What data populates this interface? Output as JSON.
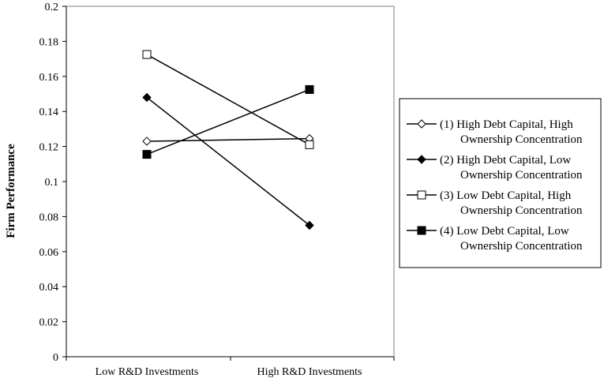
{
  "chart_data": {
    "type": "line",
    "title": "",
    "xlabel": "",
    "ylabel": "Firm Performance",
    "ylim": [
      0,
      0.2
    ],
    "yticks": [
      "0",
      "0.02",
      "0.04",
      "0.06",
      "0.08",
      "0.1",
      "0.12",
      "0.14",
      "0.16",
      "0.18",
      "0.2"
    ],
    "categories": [
      "Low R&D Investments",
      "High R&D Investments"
    ],
    "grid": false,
    "legend_position": "right",
    "series": [
      {
        "name_line1": "(1) High Debt Capital, High",
        "name_line2": "Ownership Concentration",
        "marker": "diamond-open",
        "color": "#000000",
        "values": [
          0.123,
          0.1245
        ]
      },
      {
        "name_line1": "(2) High Debt Capital, Low",
        "name_line2": "Ownership Concentration",
        "marker": "diamond-filled",
        "color": "#000000",
        "values": [
          0.148,
          0.075
        ]
      },
      {
        "name_line1": "(3) Low Debt Capital, High",
        "name_line2": "Ownership Concentration",
        "marker": "square-open",
        "color": "#000000",
        "values": [
          0.1725,
          0.121
        ]
      },
      {
        "name_line1": "(4) Low Debt Capital, Low",
        "name_line2": "Ownership Concentration",
        "marker": "square-filled",
        "color": "#000000",
        "values": [
          0.1155,
          0.1525
        ]
      }
    ]
  }
}
